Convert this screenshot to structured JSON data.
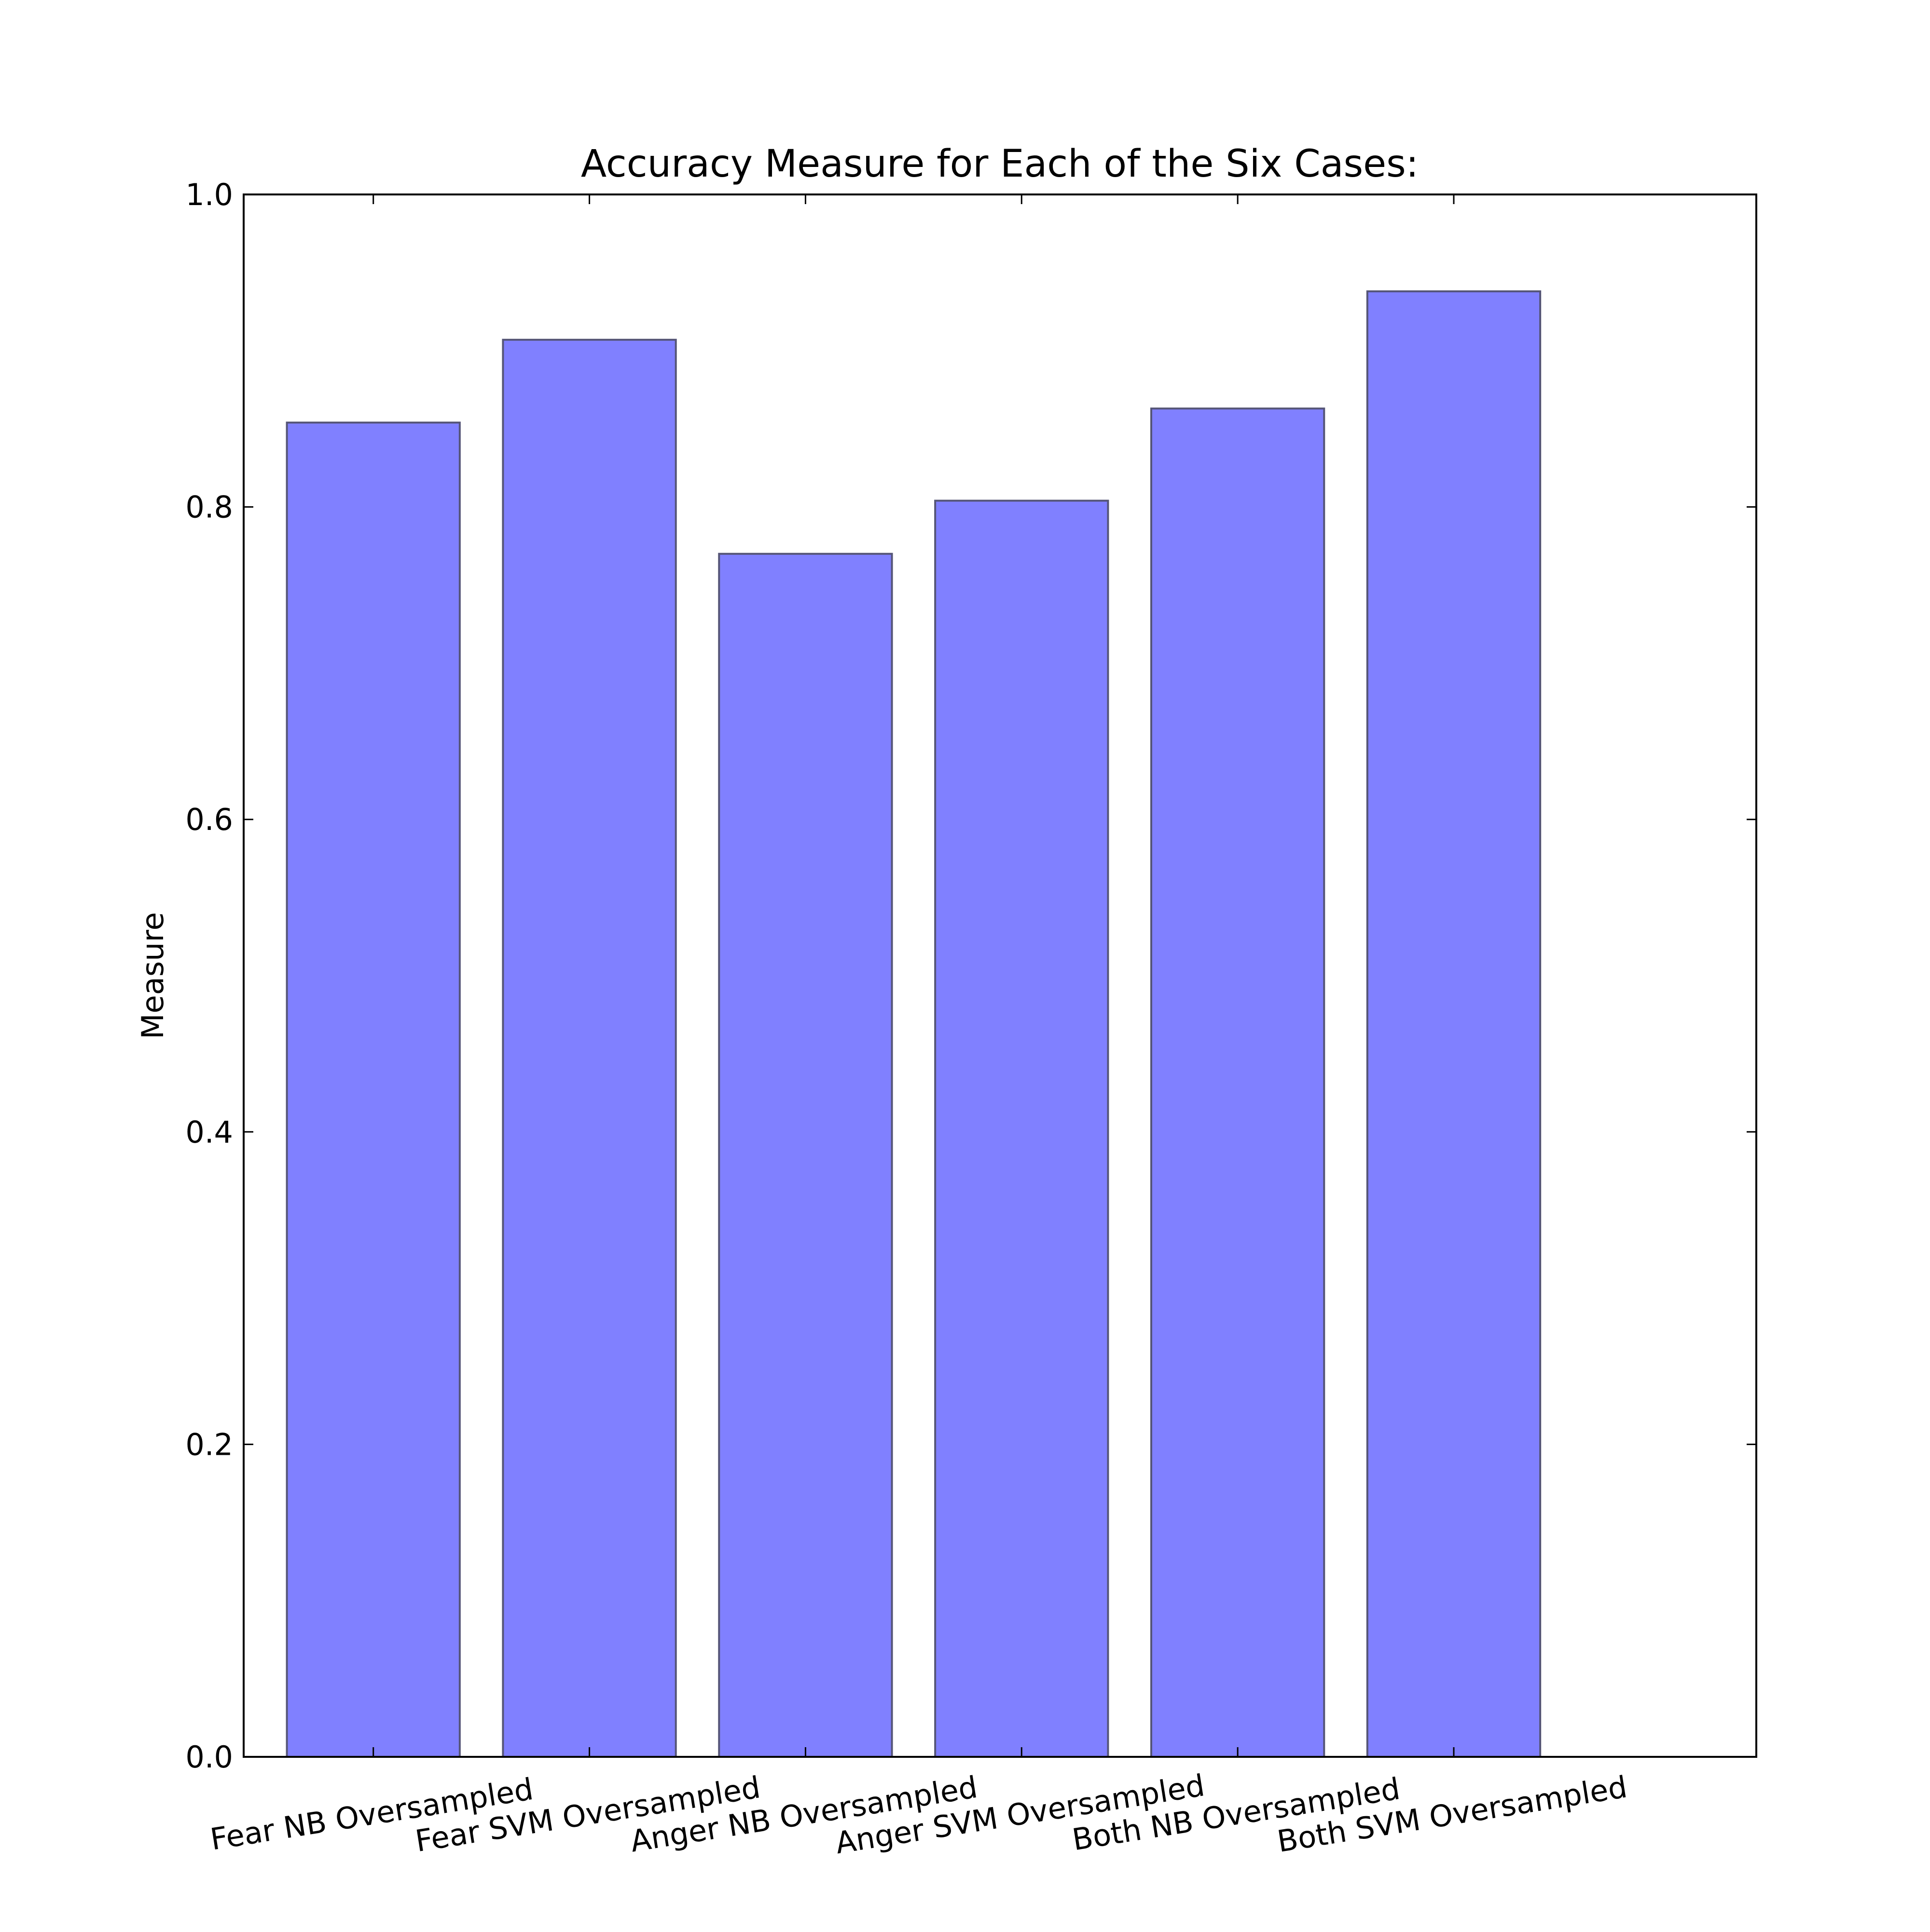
{
  "chart_data": {
    "type": "bar",
    "title": "Accuracy Measure for Each of the Six Cases:",
    "xlabel": "",
    "ylabel": "Measure",
    "categories": [
      "Fear NB Oversampled",
      "Fear SVM Oversampled",
      "Anger NB Oversampled",
      "Anger SVM Oversampled",
      "Both NB Oversampled",
      "Both SVM Oversampled"
    ],
    "values": [
      0.854,
      0.907,
      0.77,
      0.804,
      0.863,
      0.938
    ],
    "ylim": [
      0.0,
      1.0
    ],
    "yticks": [
      "0.0",
      "0.2",
      "0.4",
      "0.6",
      "0.8",
      "1.0"
    ],
    "xlim": [
      -0.6,
      6.4
    ],
    "bar_width": 0.8,
    "grid": false,
    "bar_color": "#8080ff",
    "bar_edge_color": "#555577"
  }
}
